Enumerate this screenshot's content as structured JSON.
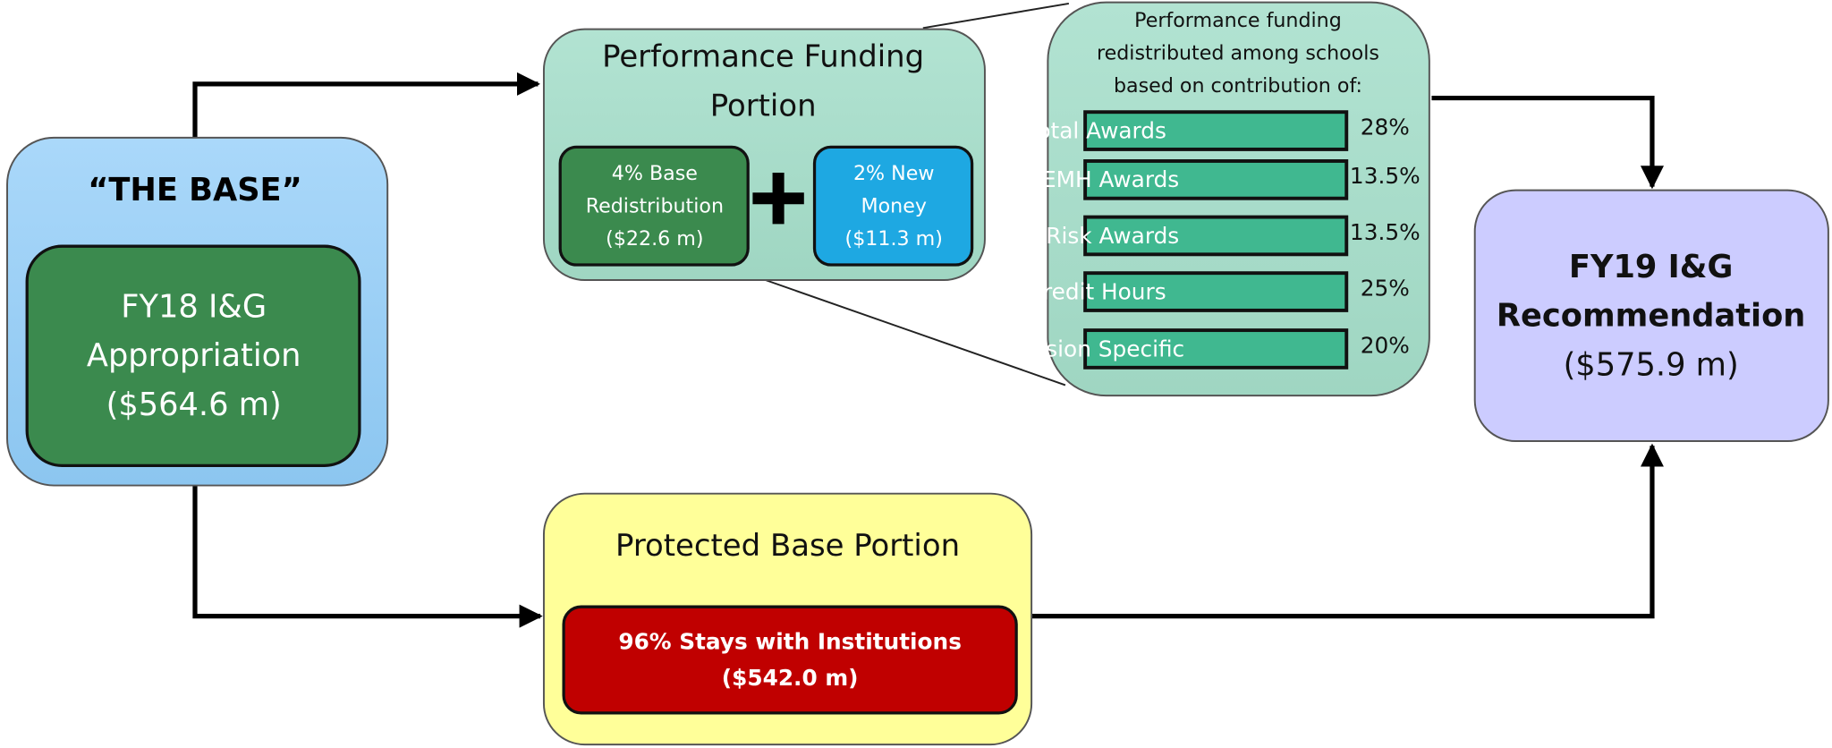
{
  "base": {
    "title": "“THE BASE”",
    "appropriation": [
      "FY18 I&G",
      "Appropriation",
      "($564.6 m)"
    ]
  },
  "performance": {
    "title": [
      "Performance Funding",
      "Portion"
    ],
    "redistribution": [
      "4% Base",
      "Redistribution",
      "($22.6 m)"
    ],
    "new_money": [
      "2% New",
      "Money",
      "($11.3 m)"
    ]
  },
  "metrics": {
    "intro": [
      "Performance funding",
      "redistributed among schools",
      "based on contribution of:"
    ],
    "items": [
      {
        "label": "Total Awards",
        "share": "28%"
      },
      {
        "label": "STEMH Awards",
        "share": "13.5%"
      },
      {
        "label": "At-Risk Awards",
        "share": "13.5%"
      },
      {
        "label": "Credit Hours",
        "share": "25%"
      },
      {
        "label": "Mission Specific",
        "share": "20%"
      }
    ]
  },
  "protected": {
    "title": "Protected Base Portion",
    "stays": [
      "96% Stays with Institutions",
      "($542.0 m)"
    ]
  },
  "recommendation": {
    "lines": [
      "FY19 I&G",
      "Recommendation",
      "($575.9 m)"
    ]
  }
}
